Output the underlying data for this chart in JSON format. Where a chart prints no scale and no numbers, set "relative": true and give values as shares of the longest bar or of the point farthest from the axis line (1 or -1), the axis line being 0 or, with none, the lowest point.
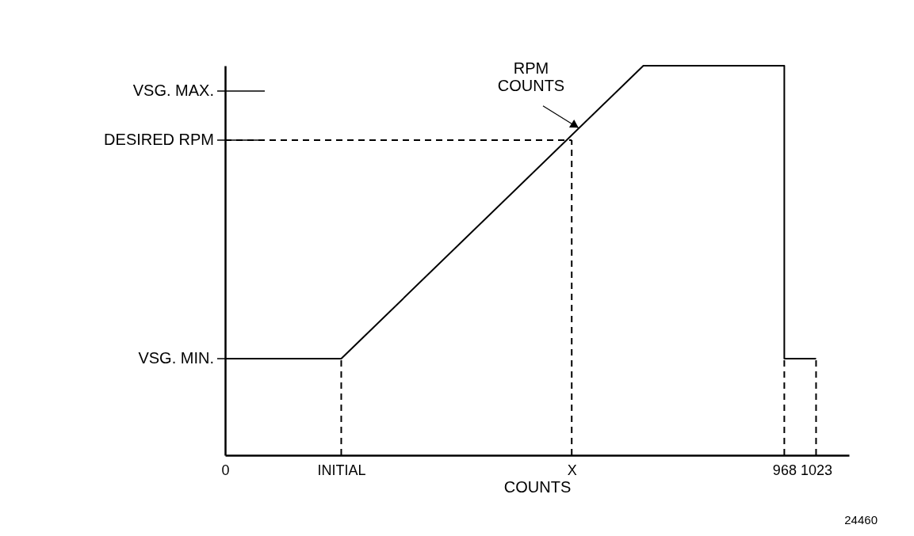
{
  "chart_data": {
    "type": "line",
    "relative": true,
    "xlabel": "COUNTS",
    "xlim": [
      0,
      1080
    ],
    "xticks": [
      0,
      {
        "value": 201,
        "label": "INITIAL"
      },
      {
        "value": 600,
        "label": "X"
      },
      968,
      1023
    ],
    "ref_lines": [
      {
        "axis": "y",
        "value": 0.248,
        "label": "VSG. MIN."
      },
      {
        "axis": "y",
        "value": 0.809,
        "label": "DESIRED RPM"
      },
      {
        "axis": "y",
        "value": 0.935,
        "label": "VSG. MAX."
      }
    ],
    "grid": false,
    "marker": "none",
    "series": [
      {
        "color": "#000000",
        "line_style": "solid",
        "x": [
          0,
          201,
          724,
          968,
          968,
          1023
        ],
        "values": [
          0.248,
          0.248,
          1,
          1,
          0.248,
          0.248
        ]
      },
      {
        "color": "#000000",
        "line_style": "dashed",
        "x": [
          0,
          600
        ],
        "values": [
          0.809,
          0.809
        ]
      },
      {
        "color": "#000000",
        "line_style": "dashed",
        "x": [
          201,
          201
        ],
        "values": [
          0,
          0.248
        ]
      },
      {
        "color": "#000000",
        "line_style": "dashed",
        "x": [
          600,
          600
        ],
        "values": [
          0,
          0.809
        ]
      },
      {
        "color": "#000000",
        "line_style": "dashed",
        "x": [
          968,
          968
        ],
        "values": [
          0,
          0.248
        ]
      },
      {
        "color": "#000000",
        "line_style": "dashed",
        "x": [
          1023,
          1023
        ],
        "values": [
          0,
          0.248
        ]
      }
    ],
    "annotations": [
      {
        "text": "RPM COUNTS",
        "x": 612,
        "y": 0.84
      },
      "24460"
    ]
  }
}
